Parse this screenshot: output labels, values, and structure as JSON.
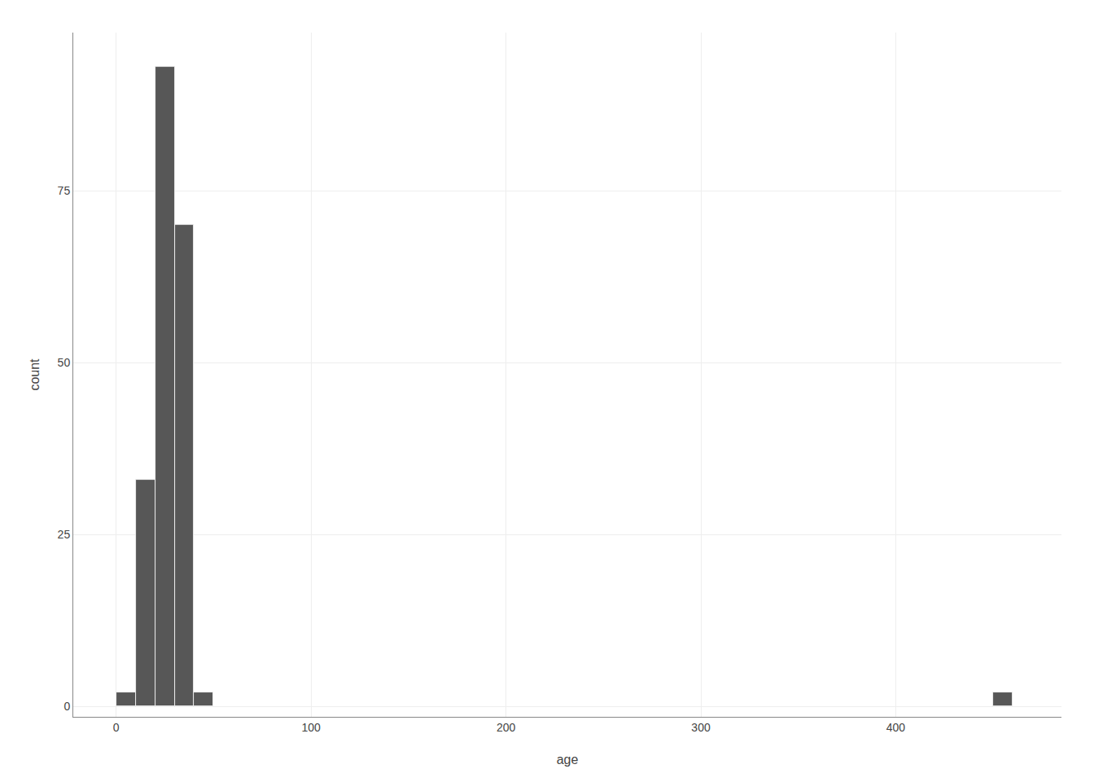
{
  "chart_data": {
    "type": "histogram",
    "xlabel": "age",
    "ylabel": "count",
    "bins": [
      0,
      10,
      20,
      30,
      40,
      50,
      450,
      460
    ],
    "values": [
      2,
      33,
      93,
      70,
      2,
      0,
      2
    ],
    "color": "#575757",
    "xlim": [
      -22,
      485
    ],
    "xticks": [
      0,
      100,
      200,
      300,
      400
    ],
    "ylim": [
      -1.5,
      98
    ],
    "yticks": [
      0,
      25,
      50,
      75
    ],
    "grid": true
  }
}
